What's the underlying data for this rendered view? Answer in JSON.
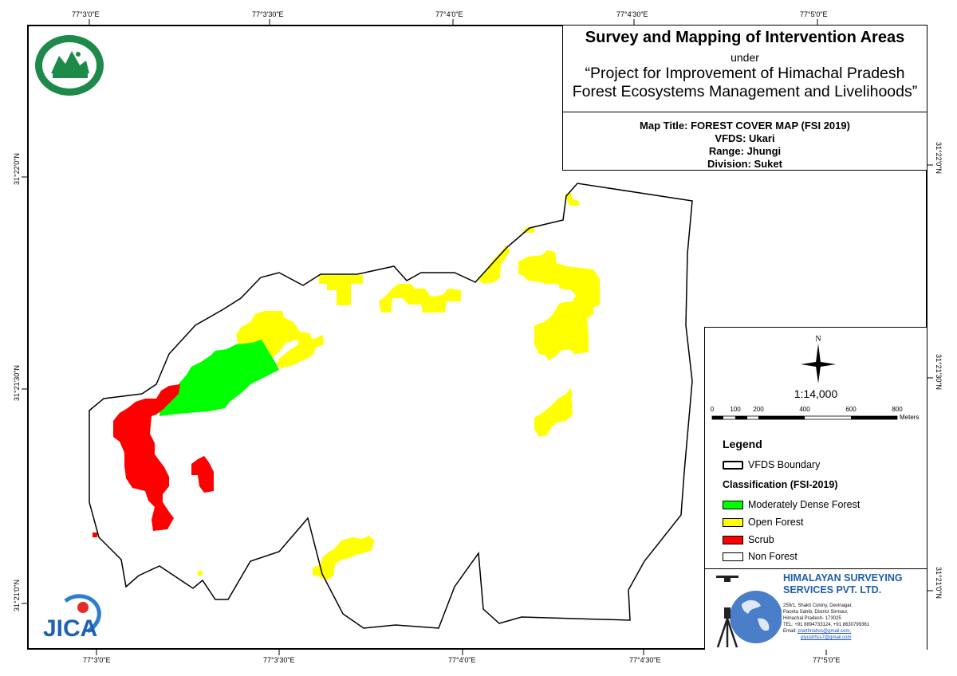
{
  "title": {
    "main": "Survey and Mapping of Intervention Areas",
    "under": "under",
    "project_line1": "“Project for Improvement of Himachal Pradesh",
    "project_line2": "Forest Ecosystems Management and Livelihoods”"
  },
  "info": {
    "map_title": "Map Title: FOREST COVER MAP (FSI 2019)",
    "vfds": "VFDS: Ukari",
    "range": "Range: Jhungi",
    "division": "Division: Suket"
  },
  "graticule": {
    "top": [
      "77°3'0\"E",
      "77°3'30\"E",
      "77°4'0\"E",
      "77°4'30\"E",
      "77°5'0\"E"
    ],
    "bottom": [
      "77°3'0\"E",
      "77°3'30\"E",
      "77°4'0\"E",
      "77°4'30\"E",
      "77°5'0\"E"
    ],
    "left": [
      "31°22'0\"N",
      "31°21'30\"N",
      "31°21'0\"N"
    ],
    "right": [
      "31°22'0\"N",
      "31°21'30\"N",
      "31°21'0\"N"
    ]
  },
  "north_label": "N",
  "scale": {
    "ratio": "1:14,000",
    "ticks": [
      "0",
      "100",
      "200",
      "400",
      "600",
      "800"
    ],
    "unit": "Meters"
  },
  "legend": {
    "title": "Legend",
    "boundary": "VFDS Boundary",
    "classification_title": "Classification (FSI-2019)",
    "classes": [
      {
        "label": "Moderately Dense Forest",
        "color": "#00ff00"
      },
      {
        "label": "Open Forest",
        "color": "#ffff00"
      },
      {
        "label": "Scrub",
        "color": "#ff0000"
      },
      {
        "label": "Non Forest",
        "color": "#ffffff"
      }
    ]
  },
  "company": {
    "name_line1": "HIMALAYAN SURVEYING",
    "name_line2": "SERVICES PVT. LTD.",
    "address": [
      "259/1, Shakti Colony, Devinagar,",
      "Paonta Sahib, District Sirmour,",
      "Himachal Pradesh- 173025",
      "TEL: +91 8894733124, +91 8630799361"
    ],
    "email_label": "Email:",
    "email1": "prarthnahss@gmail.com,",
    "email2": "piyushhss7@gmail.com"
  },
  "logos": {
    "hp_forest": "hp-forest-department-seal",
    "jica": "JICA"
  },
  "colors": {
    "moderately_dense": "#00ff00",
    "open_forest": "#ffff00",
    "scrub": "#ff0000",
    "boundary": "#000000",
    "company_blue": "#1f5fa8"
  }
}
